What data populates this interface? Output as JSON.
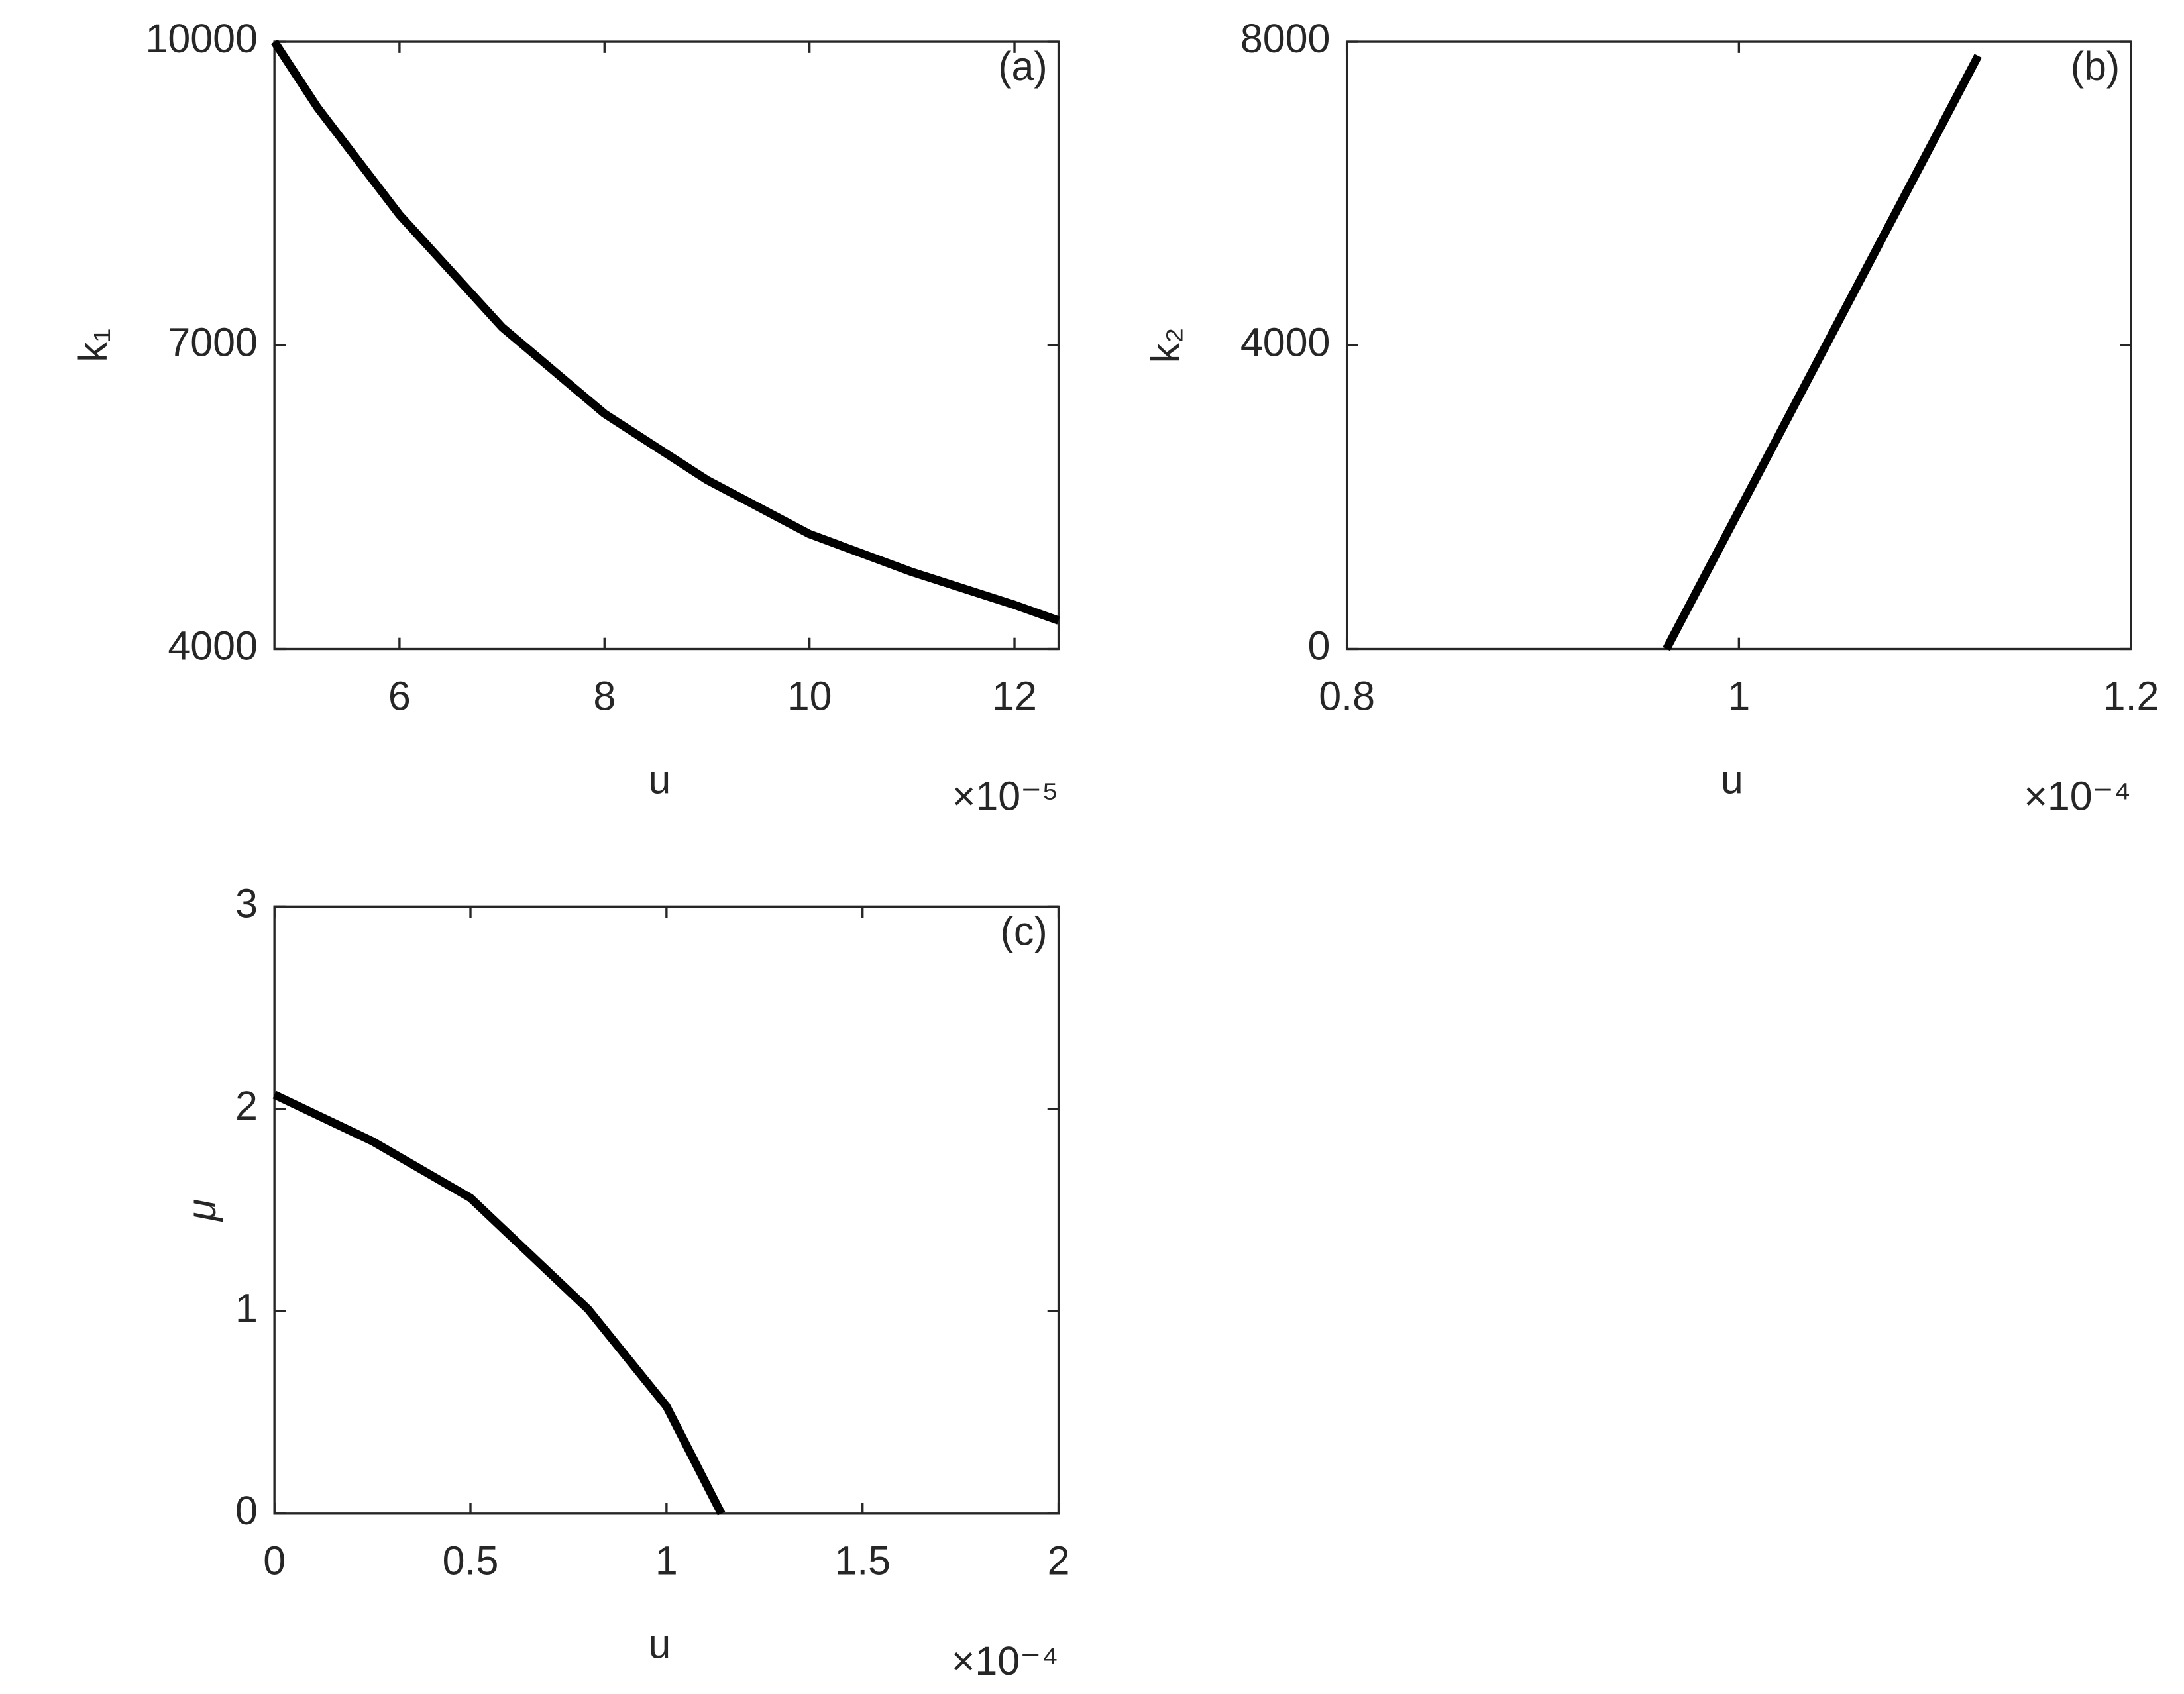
{
  "chart_data": [
    {
      "type": "line",
      "panel_label": "(a)",
      "xlabel": "u",
      "ylabel": "k₁",
      "x_multiplier": "×10⁻⁵",
      "color": "#000000",
      "x": [
        4.78,
        5.2,
        6,
        7,
        8,
        9,
        10,
        11,
        12,
        12.43
      ],
      "values": [
        10000,
        9350,
        8290,
        7180,
        6325,
        5670,
        5135,
        4760,
        4435,
        4280
      ],
      "xlim": [
        4.78,
        12.43
      ],
      "xticks": [
        6,
        8,
        10,
        12
      ],
      "ylim": [
        4000,
        10000
      ],
      "yticks": [
        4000,
        7000,
        10000
      ]
    },
    {
      "type": "line",
      "panel_label": "(b)",
      "xlabel": "u",
      "ylabel": "k₂",
      "x_multiplier": "×10⁻⁴",
      "color": "#000000",
      "x": [
        0.963,
        1.122
      ],
      "values": [
        0,
        7815
      ],
      "xlim": [
        0.8,
        1.2
      ],
      "xticks": [
        0.8,
        1,
        1.2
      ],
      "ylim": [
        0,
        8000
      ],
      "yticks": [
        0,
        4000,
        8000
      ]
    },
    {
      "type": "line",
      "panel_label": "(c)",
      "xlabel": "u",
      "ylabel": "μ",
      "x_multiplier": "×10⁻⁴",
      "color": "#000000",
      "x": [
        0,
        0.25,
        0.5,
        0.8,
        1.0,
        1.14
      ],
      "values": [
        2.07,
        1.84,
        1.56,
        1.01,
        0.53,
        0
      ],
      "xlim": [
        0,
        2
      ],
      "xticks": [
        0,
        0.5,
        1,
        1.5,
        2
      ],
      "ylim": [
        0,
        3
      ],
      "yticks": [
        0,
        1,
        2,
        3
      ]
    }
  ]
}
